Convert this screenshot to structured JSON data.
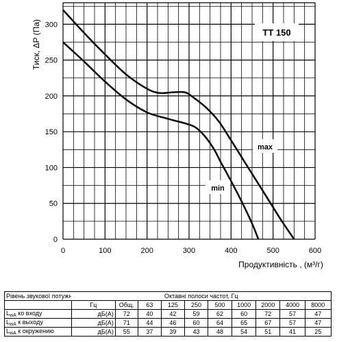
{
  "chart_data": {
    "type": "line",
    "title": "TT 150",
    "xlabel": "Продуктивність , (м³/г)",
    "ylabel": "Тиск, ΔP (Па)",
    "xlim": [
      0,
      600
    ],
    "ylim": [
      0,
      330
    ],
    "xticks": [
      0,
      100,
      200,
      300,
      400,
      500,
      600
    ],
    "yticks": [
      0,
      50,
      100,
      150,
      200,
      250,
      300
    ],
    "grid": true,
    "series": [
      {
        "name": "max",
        "x": [
          0,
          50,
          100,
          150,
          200,
          230,
          260,
          290,
          310,
          340,
          370,
          400,
          430,
          460,
          490,
          520,
          550
        ],
        "y": [
          320,
          288,
          258,
          230,
          210,
          204,
          205,
          205,
          198,
          184,
          165,
          138,
          110,
          82,
          54,
          26,
          0
        ]
      },
      {
        "name": "min",
        "x": [
          0,
          50,
          100,
          150,
          200,
          250,
          300,
          320,
          340,
          360,
          375,
          390,
          410,
          430,
          450,
          465
        ],
        "y": [
          275,
          248,
          220,
          195,
          177,
          168,
          160,
          154,
          142,
          125,
          108,
          92,
          70,
          47,
          22,
          0
        ]
      }
    ]
  },
  "table": {
    "row_label": "Рівень звукової потужності",
    "header_title": "Октавні    полоси частот, Гц",
    "freq_unit": "Гц",
    "total_label": "Общ.",
    "freqs": [
      "63",
      "125",
      "250",
      "500",
      "1000",
      "2000",
      "4000",
      "8000"
    ],
    "rows": [
      {
        "prefix": "L",
        "sub": "wA",
        "label": " ко входу",
        "unit": "дБ(А)",
        "total": "72",
        "values": [
          "40",
          "42",
          "59",
          "62",
          "60",
          "72",
          "57",
          "47"
        ]
      },
      {
        "prefix": "L",
        "sub": "wA",
        "label": " к выходу",
        "unit": "дБ(А)",
        "total": "71",
        "values": [
          "44",
          "46",
          "60",
          "64",
          "65",
          "67",
          "57",
          "47"
        ]
      },
      {
        "prefix": "L",
        "sub": "wA",
        "label": " к окружению",
        "unit": "дБ(А)",
        "total": "55",
        "values": [
          "37",
          "39",
          "43",
          "48",
          "54",
          "51",
          "41",
          "25"
        ]
      }
    ]
  }
}
